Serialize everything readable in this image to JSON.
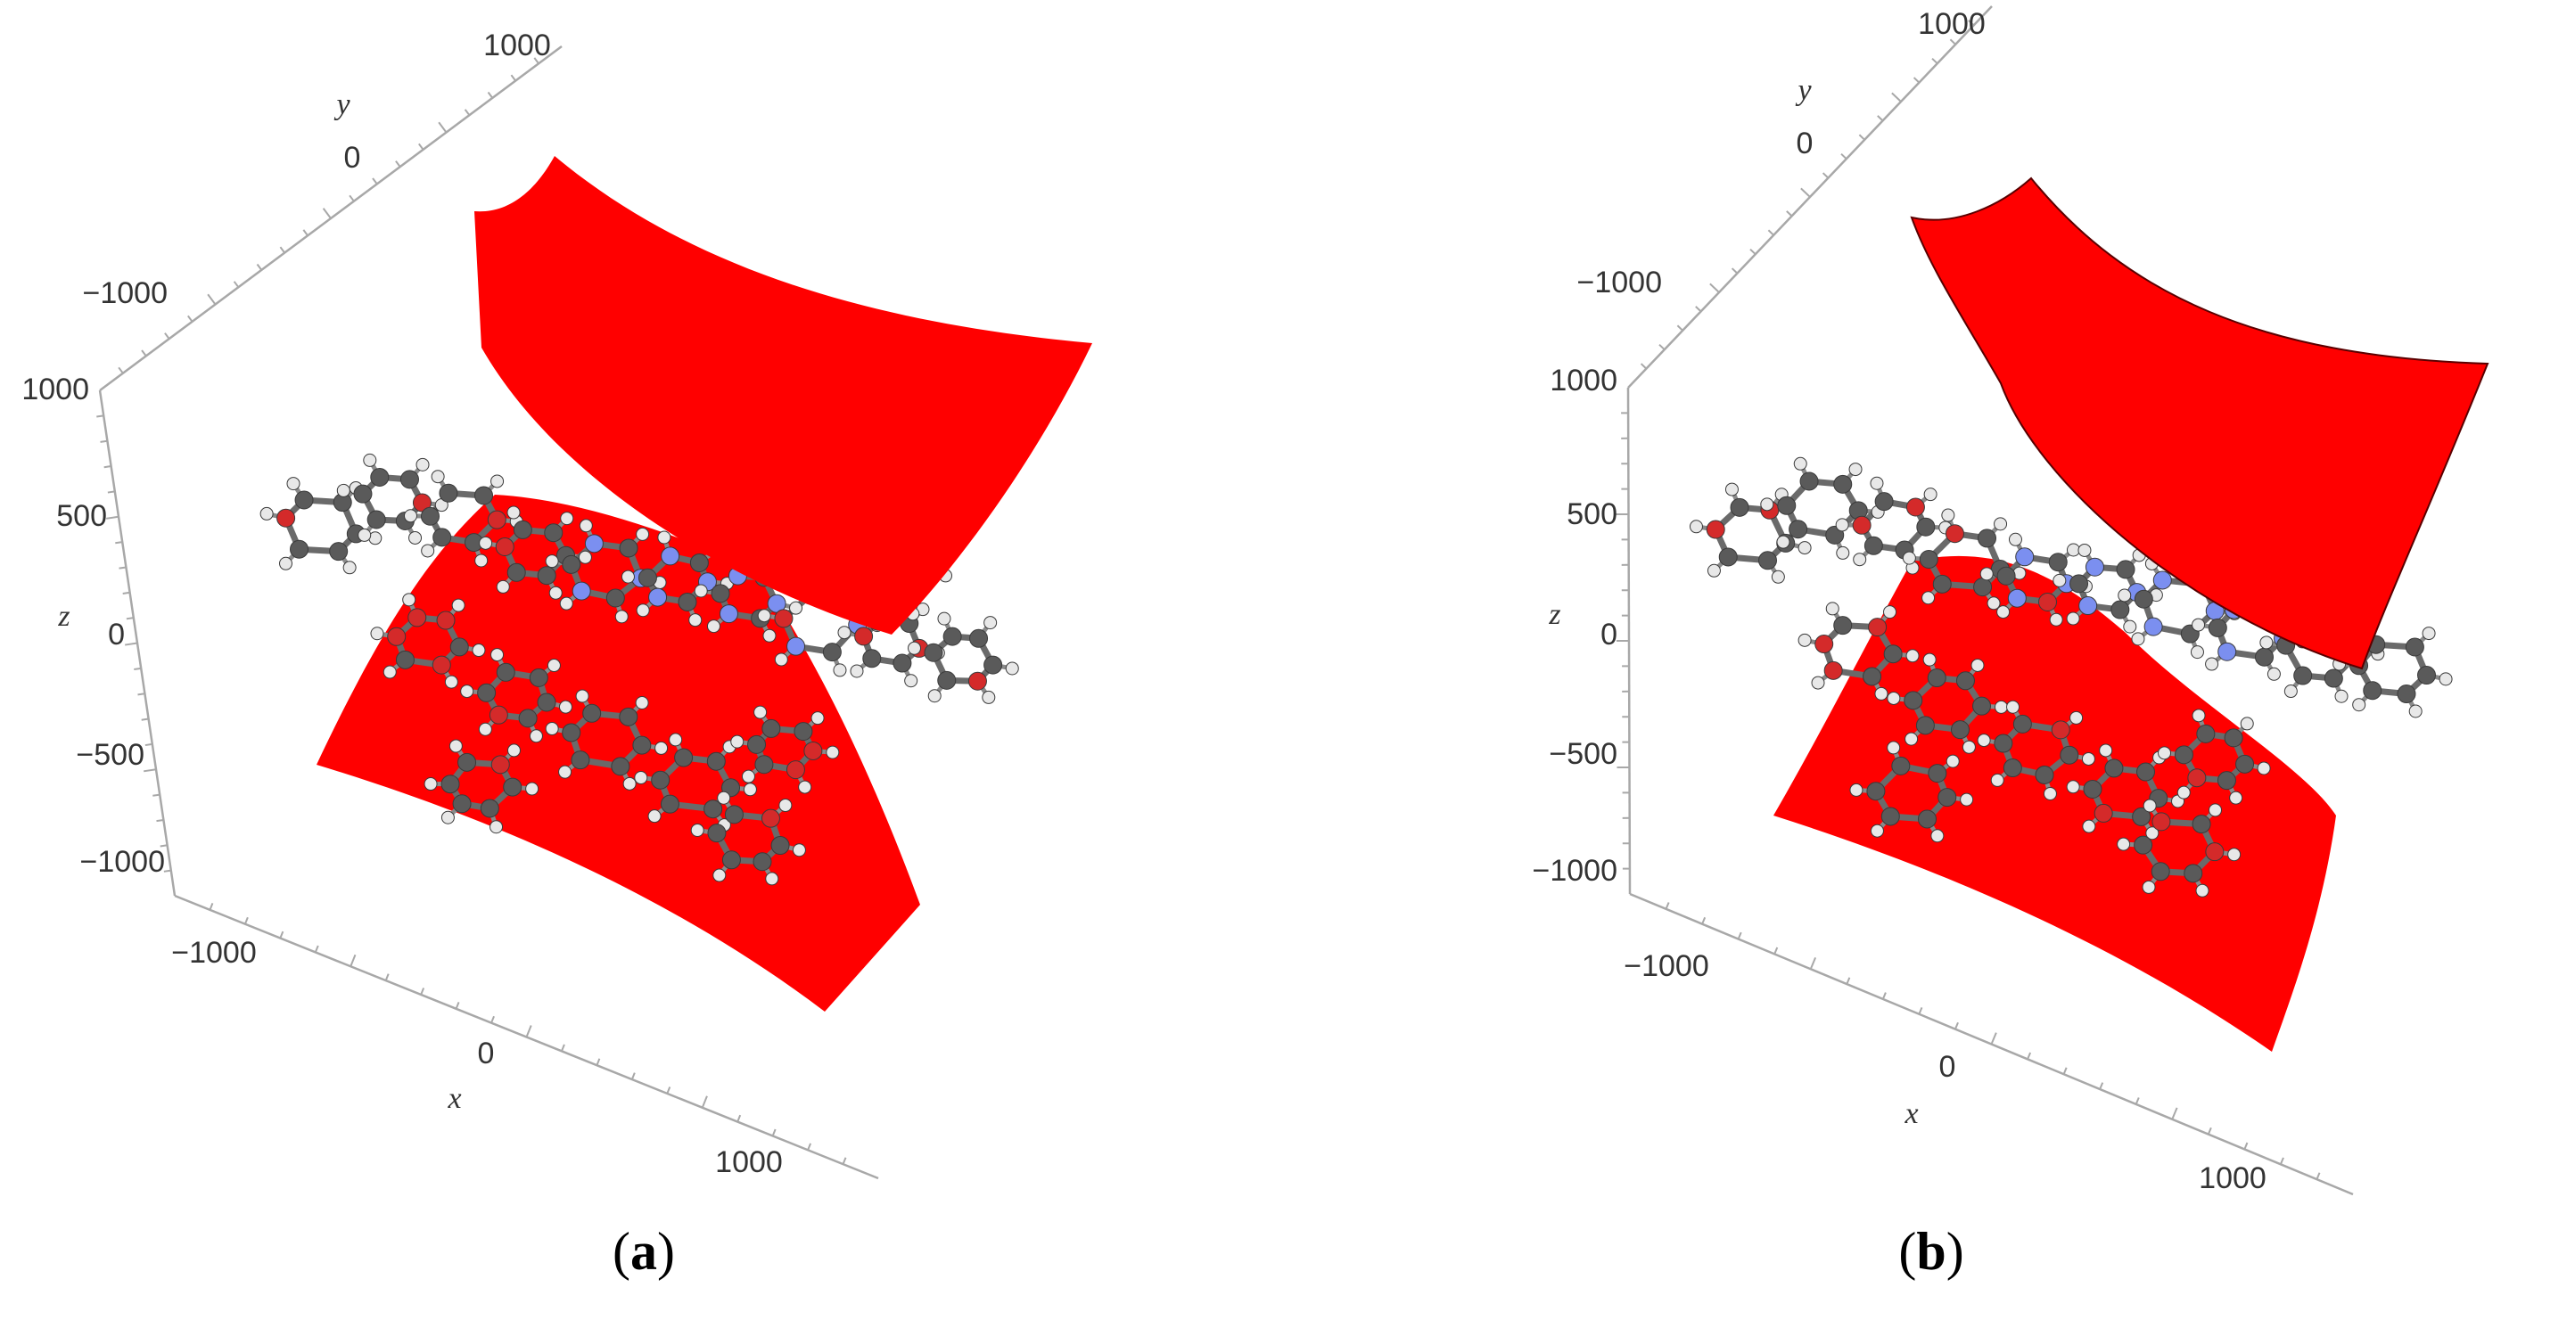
{
  "panels": [
    {
      "id": "a",
      "label": "a",
      "axis_names": {
        "x": "x",
        "y": "y",
        "z": "z"
      },
      "x_ticks": [
        "−1000",
        "0",
        "1000"
      ],
      "y_ticks": [
        "−1000",
        "0",
        "1000"
      ],
      "z_ticks": [
        "1000",
        "500",
        "0",
        "−500",
        "−1000"
      ]
    },
    {
      "id": "b",
      "label": "b",
      "axis_names": {
        "x": "x",
        "y": "y",
        "z": "z"
      },
      "x_ticks": [
        "−1000",
        "0",
        "1000"
      ],
      "y_ticks": [
        "−1000",
        "0",
        "1000"
      ],
      "z_ticks": [
        "1000",
        "500",
        "0",
        "−500",
        "−1000"
      ]
    }
  ],
  "colors": {
    "surface": "#ff0000",
    "carbon": "#5a5a5a",
    "oxygen": "#d42a2a",
    "nitrogen": "#7b8ff0",
    "hydrogen": "#e8e8e8",
    "axis": "#a8a8a8"
  }
}
